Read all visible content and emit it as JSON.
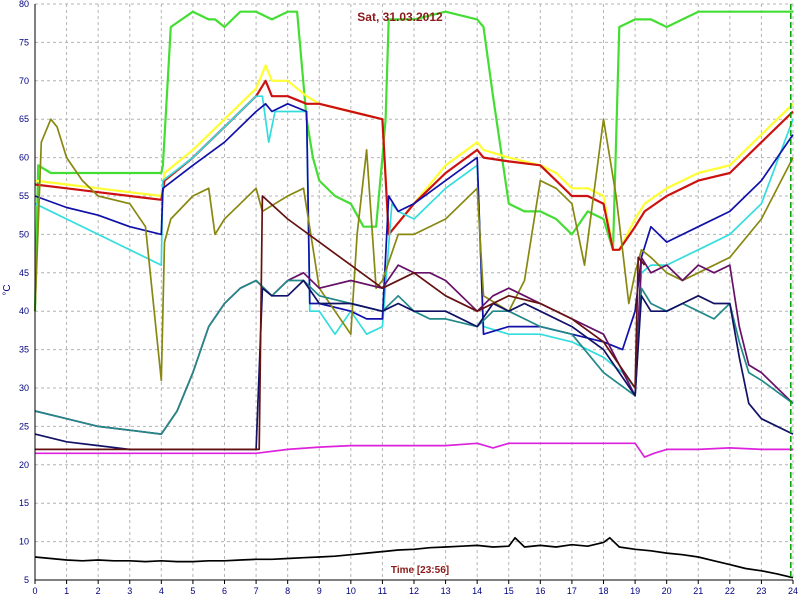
{
  "chart_data": {
    "type": "line",
    "title": "Sat, 31.03.2012",
    "ylabel": "°C",
    "time_label": "Time [23:56]",
    "xlim": [
      0,
      24
    ],
    "ylim": [
      5,
      80
    ],
    "x_ticks": [
      "0",
      "1",
      "2",
      "3",
      "4",
      "5",
      "6",
      "7",
      "8",
      "9",
      "10",
      "11",
      "12",
      "13",
      "14",
      "15",
      "16",
      "17",
      "18",
      "19",
      "20",
      "21",
      "22",
      "23",
      "24"
    ],
    "y_ticks": [
      "5",
      "10",
      "15",
      "20",
      "25",
      "30",
      "35",
      "40",
      "45",
      "50",
      "55",
      "60",
      "65",
      "70",
      "75",
      "80"
    ],
    "grid": true,
    "current_time": 23.93,
    "colors": {
      "grid": "#b4b4b4",
      "axis_text": "#000080",
      "title": "#8b1a1a",
      "now_marker": "#00a000"
    },
    "series": [
      {
        "color": "#44dd33",
        "x": [
          0,
          0.1,
          0.5,
          1,
          1.5,
          2,
          3,
          4,
          4.05,
          4.3,
          5,
          5.5,
          5.7,
          6,
          6.5,
          7,
          7.5,
          8,
          8.3,
          8.6,
          8.8,
          9,
          9.5,
          10,
          10.4,
          10.8,
          11,
          11.1,
          11.2,
          11.5,
          12,
          13,
          14,
          14.2,
          14.5,
          15,
          15.5,
          16,
          16.5,
          17,
          17.5,
          18,
          18.3,
          18.5,
          19,
          19.5,
          20,
          20.5,
          21,
          22,
          23,
          23.5,
          24
        ],
        "y": [
          40,
          59,
          58,
          58,
          58,
          58,
          58,
          58,
          59,
          77,
          79,
          78,
          78,
          77,
          79,
          79,
          78,
          79,
          79,
          65,
          60,
          57,
          55,
          54,
          51,
          51,
          60,
          65,
          78,
          78,
          78,
          79,
          78,
          77,
          68,
          54,
          53,
          53,
          52,
          50,
          53,
          52,
          48,
          77,
          78,
          78,
          77,
          78,
          79,
          79,
          79,
          79,
          79
        ]
      },
      {
        "color": "#ffff33",
        "x": [
          0,
          1,
          2,
          3,
          4,
          4.1,
          5,
          6,
          7,
          7.3,
          7.5,
          8,
          8.6,
          9,
          10,
          11,
          11.2,
          12,
          13,
          14,
          14.2,
          15,
          16,
          16.5,
          17,
          17.5,
          18,
          18.3,
          18.5,
          19,
          19.3,
          20,
          21,
          22,
          23,
          24
        ],
        "y": [
          57,
          56.5,
          56,
          55.5,
          55,
          58,
          61,
          65,
          69,
          72,
          70,
          70,
          68,
          67,
          66,
          65,
          50,
          54,
          59,
          62,
          61,
          60,
          59,
          58,
          56,
          56,
          55,
          48,
          48,
          52,
          54,
          56,
          58,
          59,
          63,
          67
        ]
      },
      {
        "color": "#cc1111",
        "x": [
          0,
          1,
          2,
          3,
          4,
          4.1,
          5,
          6,
          7,
          7.3,
          7.5,
          8,
          8.6,
          9,
          10,
          11,
          11.2,
          12,
          13,
          14,
          14.2,
          15,
          16,
          16.5,
          17,
          17.5,
          18,
          18.3,
          18.5,
          19,
          19.3,
          20,
          21,
          22,
          23,
          24
        ],
        "y": [
          56.5,
          56,
          55.5,
          55,
          54.5,
          57,
          60,
          64,
          68,
          70,
          68,
          68,
          67,
          67,
          66,
          65,
          50,
          54,
          58,
          61,
          60,
          59.5,
          59,
          57,
          55,
          55,
          54,
          48,
          48,
          51,
          53,
          55,
          57,
          58,
          62,
          66
        ]
      },
      {
        "color": "#33dddd",
        "x": [
          0,
          1,
          2,
          3,
          4,
          4.05,
          5,
          6,
          7,
          7.2,
          7.4,
          7.6,
          8,
          8.6,
          8.7,
          9,
          9.5,
          10,
          10.5,
          11,
          11.3,
          11.5,
          12,
          13,
          14,
          14.2,
          15,
          16,
          17,
          18,
          18.6,
          19,
          19.2,
          19.5,
          20,
          21,
          22,
          23,
          24
        ],
        "y": [
          54,
          52,
          50,
          48,
          46,
          57,
          60,
          64,
          68,
          68,
          62,
          66,
          66,
          66,
          40,
          40,
          37,
          40,
          37,
          38,
          54,
          53,
          52,
          56,
          59,
          38,
          37,
          37,
          36,
          34,
          32,
          30,
          45,
          46,
          46,
          48,
          50,
          54,
          65
        ]
      },
      {
        "color": "#1111aa",
        "x": [
          0,
          1,
          2,
          3,
          4,
          4.05,
          5,
          6,
          7,
          7.3,
          7.5,
          8,
          8.6,
          8.7,
          9,
          10,
          10.5,
          11,
          11.2,
          11.5,
          12,
          13,
          14,
          14.2,
          15,
          16,
          17,
          18,
          18.6,
          19,
          19.2,
          19.5,
          20,
          21,
          22,
          23,
          24
        ],
        "y": [
          55,
          53.5,
          52.5,
          51,
          50,
          56,
          59,
          62,
          66,
          67,
          66,
          67,
          66,
          41,
          41,
          40,
          39,
          39,
          55,
          53,
          54,
          57,
          60,
          37,
          38,
          38,
          37,
          36,
          35,
          40,
          47,
          51,
          49,
          51,
          53,
          57,
          63
        ]
      },
      {
        "color": "#888811",
        "x": [
          0,
          0.2,
          0.5,
          0.7,
          1,
          1.5,
          2,
          3,
          3.5,
          4,
          4.1,
          4.3,
          5,
          5.5,
          5.7,
          6,
          6.5,
          7,
          7.2,
          7.6,
          8,
          8.5,
          9,
          9.5,
          10,
          10.2,
          10.5,
          10.8,
          11,
          11.5,
          12,
          13,
          14,
          14.2,
          14.6,
          15,
          15.5,
          16,
          16.5,
          17,
          17.4,
          18,
          18.2,
          18.4,
          18.6,
          18.8,
          19,
          19.2,
          19.5,
          20,
          20.5,
          21,
          22,
          23,
          24
        ],
        "y": [
          40,
          62,
          65,
          64,
          60,
          57,
          55,
          54,
          51,
          31,
          49,
          52,
          55,
          56,
          50,
          52,
          54,
          56,
          53,
          54,
          55,
          56,
          43,
          40,
          37,
          50,
          61,
          43,
          44,
          50,
          50,
          52,
          56,
          42,
          41,
          40,
          44,
          57,
          56,
          54,
          46,
          65,
          60,
          55,
          48,
          41,
          45,
          48,
          47,
          45,
          44,
          45,
          47,
          52,
          60
        ]
      },
      {
        "color": "#661166",
        "x": [
          0,
          1,
          2,
          3,
          4,
          4.5,
          5,
          5.5,
          6,
          6.5,
          7,
          7.5,
          8,
          8.5,
          9,
          10,
          11,
          11.5,
          12,
          12.5,
          13,
          14,
          14.5,
          15,
          15.5,
          16,
          17,
          18,
          19,
          19.2,
          19.5,
          20,
          20.5,
          21,
          21.5,
          22,
          22.3,
          22.6,
          23,
          24
        ],
        "y": [
          27,
          26,
          25,
          24.5,
          24,
          27,
          32,
          38,
          41,
          43,
          44,
          42,
          44,
          45,
          43,
          44,
          43,
          46,
          45,
          45,
          44,
          40,
          42,
          43,
          42,
          41,
          39,
          37,
          29,
          47,
          45,
          46,
          44,
          46,
          45,
          46,
          38,
          33,
          32,
          28
        ]
      },
      {
        "color": "#228888",
        "x": [
          0,
          1,
          2,
          3,
          4,
          4.5,
          5,
          5.5,
          6,
          6.5,
          7,
          7.5,
          8,
          8.5,
          9,
          10,
          11,
          11.5,
          12,
          12.5,
          13,
          14,
          14.5,
          15,
          15.5,
          16,
          17,
          18,
          19,
          19.2,
          19.5,
          20,
          20.5,
          21,
          21.5,
          22,
          22.3,
          22.6,
          23,
          24
        ],
        "y": [
          27,
          26,
          25,
          24.5,
          24,
          27,
          32,
          38,
          41,
          43,
          44,
          42,
          44,
          44,
          42,
          41,
          40,
          42,
          40,
          39,
          39,
          38,
          40,
          40,
          39,
          38,
          37,
          32,
          29,
          43,
          41,
          40,
          41,
          40,
          39,
          41,
          36,
          32,
          31,
          28
        ]
      },
      {
        "color": "#111166",
        "x": [
          0,
          1,
          2,
          3,
          4,
          5,
          6,
          7,
          7.2,
          7.5,
          8,
          8.5,
          9,
          10,
          11,
          11.5,
          12,
          12.5,
          13,
          14,
          14.5,
          15,
          15.5,
          16,
          17,
          18,
          19,
          19.2,
          19.5,
          20,
          20.5,
          21,
          21.5,
          22,
          22.3,
          22.6,
          23,
          24
        ],
        "y": [
          24,
          23,
          22.5,
          22,
          22,
          22,
          22,
          22,
          43,
          42,
          42,
          44,
          41,
          41,
          40,
          41,
          40,
          40,
          40,
          38,
          41,
          40,
          41,
          40,
          38,
          35,
          29,
          42,
          40,
          40,
          41,
          42,
          41,
          41,
          34,
          28,
          26,
          24
        ]
      },
      {
        "color": "#661111",
        "x": [
          0,
          1,
          2,
          3,
          4,
          5,
          6,
          7,
          7.1,
          7.2,
          8,
          9,
          10,
          11,
          12,
          13,
          14,
          15,
          16,
          17,
          18,
          19,
          19.1,
          19.3
        ],
        "y": [
          22,
          22,
          22,
          22,
          22,
          22,
          22,
          22,
          22,
          55,
          52,
          49,
          46,
          43,
          45,
          42,
          40,
          42,
          41,
          39,
          36,
          30,
          47,
          46
        ]
      },
      {
        "color": "#dd22dd",
        "x": [
          0,
          1,
          2,
          3,
          4,
          5,
          6,
          7,
          8,
          9,
          10,
          11,
          12,
          13,
          14,
          14.5,
          15,
          16,
          17,
          18,
          19,
          19.3,
          19.6,
          20,
          21,
          22,
          23,
          24
        ],
        "y": [
          21.5,
          21.5,
          21.5,
          21.5,
          21.5,
          21.5,
          21.5,
          21.5,
          22,
          22.3,
          22.5,
          22.5,
          22.5,
          22.5,
          22.8,
          22.2,
          22.8,
          22.8,
          22.8,
          22.8,
          22.8,
          21,
          21.5,
          22,
          22,
          22.2,
          22,
          22
        ]
      },
      {
        "color": "#000000",
        "x": [
          0,
          0.5,
          1,
          1.5,
          2,
          2.5,
          3,
          3.5,
          4,
          4.5,
          5,
          5.5,
          6,
          6.5,
          7,
          7.5,
          8,
          8.5,
          9,
          9.5,
          10,
          10.5,
          11,
          11.5,
          12,
          12.5,
          13,
          13.5,
          14,
          14.5,
          15,
          15.2,
          15.5,
          16,
          16.5,
          17,
          17.5,
          18,
          18.2,
          18.5,
          19,
          19.5,
          20,
          20.5,
          21,
          21.5,
          22,
          22.5,
          23,
          23.5,
          24
        ],
        "y": [
          8,
          7.8,
          7.6,
          7.5,
          7.6,
          7.5,
          7.5,
          7.4,
          7.5,
          7.4,
          7.4,
          7.5,
          7.5,
          7.6,
          7.7,
          7.7,
          7.8,
          7.9,
          8,
          8.1,
          8.3,
          8.5,
          8.7,
          8.9,
          9,
          9.2,
          9.3,
          9.4,
          9.5,
          9.3,
          9.4,
          10.5,
          9.3,
          9.5,
          9.3,
          9.6,
          9.4,
          9.9,
          10.5,
          9.3,
          9,
          8.8,
          8.5,
          8.3,
          8,
          7.5,
          7,
          6.5,
          6.2,
          5.8,
          5.3
        ]
      }
    ]
  }
}
